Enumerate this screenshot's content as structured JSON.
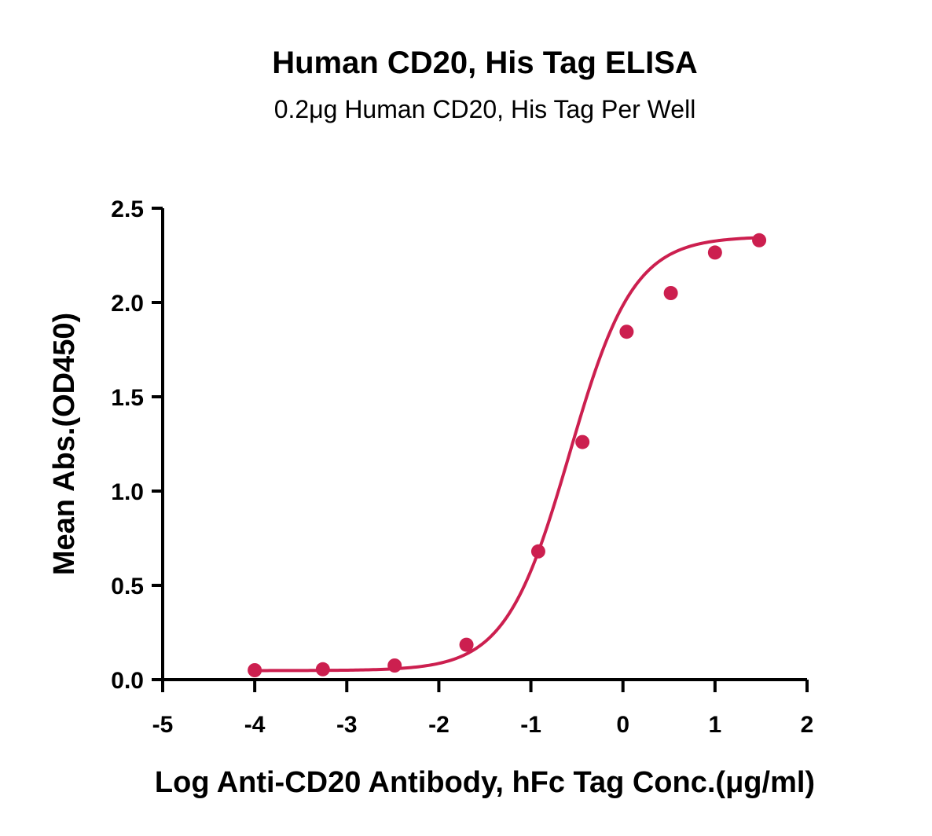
{
  "chart_data": {
    "type": "scatter",
    "title": "Human CD20, His Tag ELISA",
    "subtitle": "0.2μg Human CD20, His Tag Per Well",
    "xlabel": "Log Anti-CD20 Antibody, hFc Tag Conc.(μg/ml)",
    "ylabel": "Mean Abs.(OD450)",
    "xlim": [
      -5,
      2
    ],
    "ylim": [
      0,
      2.5
    ],
    "x_ticks": [
      "-5",
      "-4",
      "-3",
      "-2",
      "-1",
      "0",
      "1",
      "2"
    ],
    "y_ticks": [
      "0.0",
      "0.5",
      "1.0",
      "1.5",
      "2.0",
      "2.5"
    ],
    "grid": false,
    "color": "#cc1f4f",
    "points": [
      {
        "x": -4.0,
        "y": 0.05
      },
      {
        "x": -3.26,
        "y": 0.055
      },
      {
        "x": -2.48,
        "y": 0.075
      },
      {
        "x": -1.7,
        "y": 0.185
      },
      {
        "x": -0.92,
        "y": 0.68
      },
      {
        "x": -0.44,
        "y": 1.26
      },
      {
        "x": 0.04,
        "y": 1.845
      },
      {
        "x": 0.52,
        "y": 2.05
      },
      {
        "x": 1.0,
        "y": 2.265
      },
      {
        "x": 1.48,
        "y": 2.33
      }
    ],
    "curve": {
      "model": "4PL",
      "bottom": 0.048,
      "top": 2.35,
      "log_ec50": -0.58,
      "hill_slope": 1.25,
      "x_range": [
        -4.0,
        1.48
      ]
    }
  }
}
